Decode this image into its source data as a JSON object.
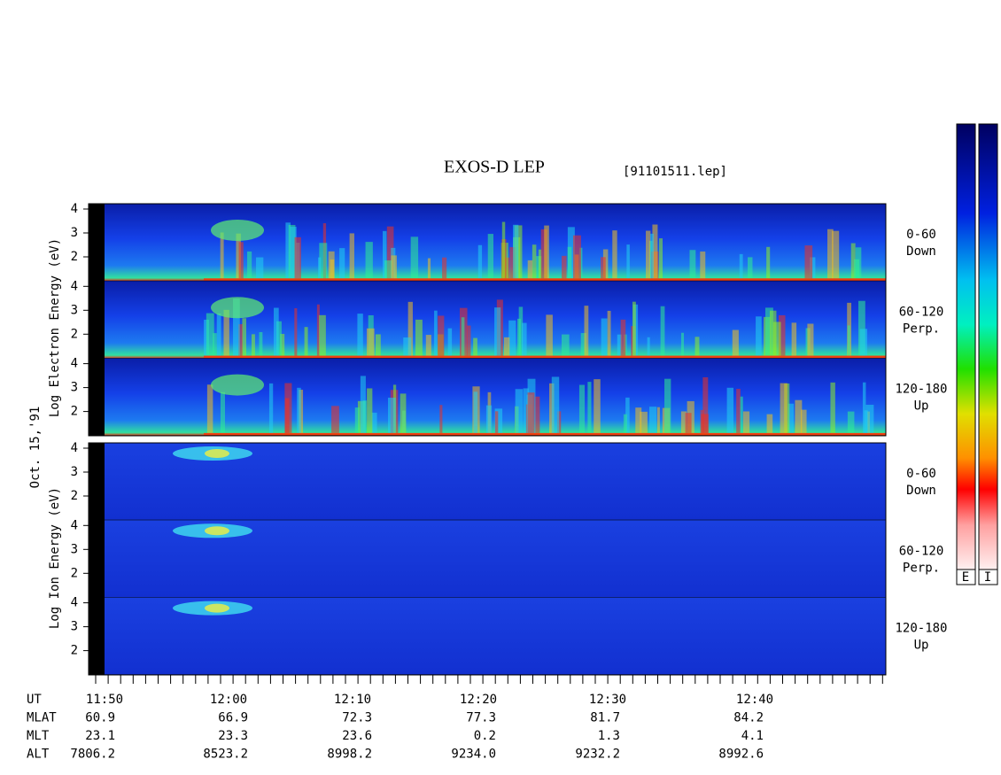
{
  "header": {
    "title": "EXOS-D LEP",
    "file": "[91101511.lep]"
  },
  "date": "Oct. 15,'91",
  "electron_panel": {
    "axis_label": "Log  Electron  Energy (eV)",
    "subpanels": [
      {
        "ticks": [
          "4",
          "3",
          "2"
        ],
        "pitch": "0-60",
        "direction": "Down"
      },
      {
        "ticks": [
          "4",
          "3",
          "2"
        ],
        "pitch": "60-120",
        "direction": "Perp."
      },
      {
        "ticks": [
          "4",
          "3",
          "2"
        ],
        "pitch": "120-180",
        "direction": "Up"
      }
    ]
  },
  "ion_panel": {
    "axis_label": "Log  Ion  Energy (eV)",
    "subpanels": [
      {
        "ticks": [
          "4",
          "3",
          "2"
        ],
        "pitch": "0-60",
        "direction": "Down"
      },
      {
        "ticks": [
          "4",
          "3",
          "2"
        ],
        "pitch": "60-120",
        "direction": "Perp."
      },
      {
        "ticks": [
          "4",
          "3",
          "2"
        ],
        "pitch": "120-180",
        "direction": "Up"
      }
    ]
  },
  "colorbar_labels": [
    "E",
    "I"
  ],
  "time_table": {
    "row_labels": [
      "UT",
      "MLAT",
      "MLT",
      "ALT"
    ],
    "rows": [
      [
        "11:50",
        "12:00",
        "12:10",
        "12:20",
        "12:30",
        "12:40"
      ],
      [
        "60.9",
        "66.9",
        "72.3",
        "77.3",
        "81.7",
        "84.2"
      ],
      [
        "23.1",
        "23.3",
        "23.6",
        "0.2",
        "1.3",
        "4.1"
      ],
      [
        "7806.2",
        "8523.2",
        "8998.2",
        "9234.0",
        "9232.2",
        "8992.6"
      ]
    ]
  }
}
